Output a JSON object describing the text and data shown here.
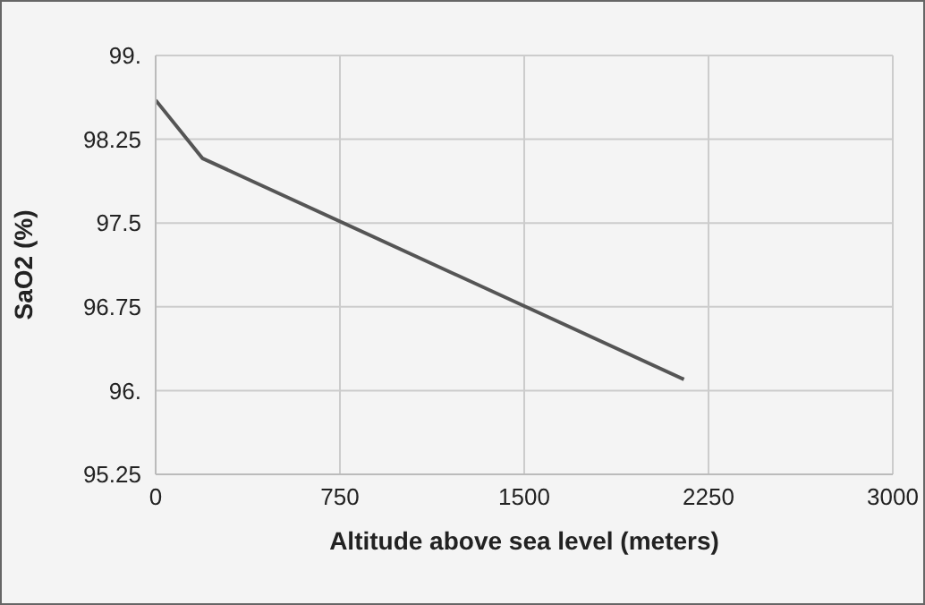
{
  "chart_data": {
    "type": "line",
    "xlabel": "Altitude above sea level (meters)",
    "ylabel": "SaO2 (%)",
    "x": [
      0,
      190,
      2150
    ],
    "series": [
      {
        "color": "#555555",
        "values": [
          98.6,
          98.08,
          96.1
        ]
      }
    ],
    "xlim": [
      0,
      3000
    ],
    "xticks": [
      0,
      750,
      1500,
      2250,
      3000
    ],
    "ylim": [
      95.25,
      99
    ],
    "yticks": [
      95.25,
      {
        "value": 96,
        "label": "96."
      },
      96.75,
      97.5,
      98.25,
      {
        "value": 99,
        "label": "99."
      }
    ],
    "grid": true,
    "marker": "none",
    "line_style": "solid"
  }
}
